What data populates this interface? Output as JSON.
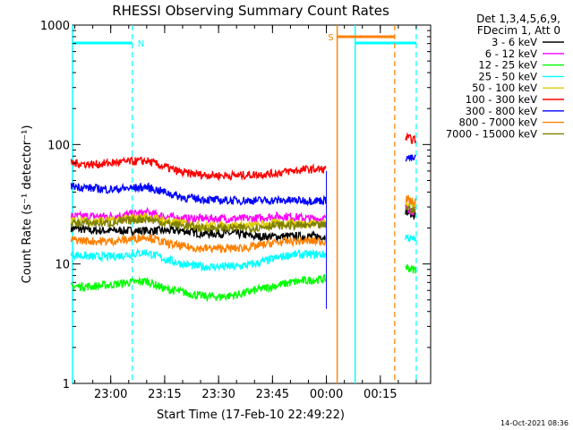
{
  "chart_data": {
    "type": "line",
    "title": "RHESSI Observing Summary Count Rates",
    "xlabel": "Start Time (17-Feb-10 22:49:22)",
    "ylabel": "Count Rate (s⁻¹ detector⁻¹)",
    "yscale": "log",
    "ylim": [
      1,
      1000
    ],
    "y_ticks": [
      1,
      10,
      100,
      1000
    ],
    "y_tick_labels": [
      "1",
      "10",
      "100",
      "1000"
    ],
    "xlim": [
      "22:49:22",
      "00:29:00"
    ],
    "x_ticks": [
      "23:00",
      "23:15",
      "23:30",
      "23:45",
      "00:00",
      "00:15"
    ],
    "legend_header": [
      "Det 1,3,4,5,6,9,",
      "FDecim 1, Att 0"
    ],
    "legend_position": "outside-right",
    "timestamp": "14-Oct-2021 08:36",
    "series": [
      {
        "name": "3 - 6 keV",
        "color": "#000000",
        "x": [
          "22:49",
          "22:55",
          "23:00",
          "23:05",
          "23:10",
          "23:15",
          "23:20",
          "23:25",
          "23:30",
          "23:35",
          "23:40",
          "23:45",
          "23:50",
          "23:55",
          "00:00",
          "00:22",
          "00:23",
          "00:24",
          "00:25"
        ],
        "y": [
          20,
          19,
          19,
          19,
          19,
          19,
          19,
          18,
          18,
          18,
          17,
          17,
          17,
          17,
          17,
          28,
          27,
          26,
          26
        ]
      },
      {
        "name": "6 - 12 keV",
        "color": "#ff00ff",
        "x": [
          "22:49",
          "22:55",
          "23:00",
          "23:05",
          "23:10",
          "23:15",
          "23:20",
          "23:25",
          "23:30",
          "23:35",
          "23:40",
          "23:45",
          "23:50",
          "23:55",
          "00:00",
          "00:22",
          "00:23",
          "00:24",
          "00:25"
        ],
        "y": [
          25,
          25,
          25,
          26,
          27,
          25,
          24,
          24,
          24,
          24,
          24,
          25,
          25,
          24,
          24,
          30,
          29,
          28,
          28
        ]
      },
      {
        "name": "12 - 25 keV",
        "color": "#00ff00",
        "x": [
          "22:49",
          "22:55",
          "23:00",
          "23:05",
          "23:10",
          "23:15",
          "23:20",
          "23:25",
          "23:30",
          "23:35",
          "23:40",
          "23:45",
          "23:50",
          "23:55",
          "00:00",
          "00:22",
          "00:23",
          "00:24",
          "00:25"
        ],
        "y": [
          6.5,
          6.5,
          6.7,
          7.0,
          7.2,
          6.2,
          5.8,
          5.4,
          5.3,
          5.5,
          6.0,
          6.5,
          7.0,
          7.3,
          7.5,
          9.5,
          9.2,
          9.0,
          9.0
        ]
      },
      {
        "name": "25 - 50 keV",
        "color": "#00ffff",
        "x": [
          "22:49",
          "22:55",
          "23:00",
          "23:05",
          "23:10",
          "23:15",
          "23:20",
          "23:25",
          "23:30",
          "23:35",
          "23:40",
          "23:45",
          "23:50",
          "23:55",
          "00:00",
          "00:22",
          "00:23",
          "00:24",
          "00:25"
        ],
        "y": [
          12,
          11.5,
          11.5,
          12,
          12.5,
          11,
          10,
          9.5,
          9.5,
          9.5,
          10,
          11,
          12,
          12,
          12,
          17,
          16.5,
          16,
          16
        ]
      },
      {
        "name": "50 - 100 keV",
        "color": "#ddcc00",
        "x": [
          "22:49",
          "22:55",
          "23:00",
          "23:05",
          "23:10",
          "23:15",
          "23:20",
          "23:25",
          "23:30",
          "23:35",
          "23:40",
          "23:45",
          "23:50",
          "23:55",
          "00:00",
          "00:22",
          "00:23",
          "00:24",
          "00:25"
        ],
        "y": [
          23,
          23,
          23,
          24,
          25,
          23,
          22,
          21,
          21,
          21,
          21,
          22,
          22,
          22,
          22,
          33,
          32,
          31,
          31
        ]
      },
      {
        "name": "100 - 300 keV",
        "color": "#ff0000",
        "x": [
          "22:49",
          "22:55",
          "23:00",
          "23:05",
          "23:10",
          "23:15",
          "23:20",
          "23:25",
          "23:30",
          "23:35",
          "23:40",
          "23:45",
          "23:50",
          "23:55",
          "00:00",
          "00:22",
          "00:23",
          "00:24",
          "00:25"
        ],
        "y": [
          70,
          68,
          70,
          72,
          73,
          65,
          58,
          56,
          55,
          55,
          56,
          57,
          60,
          62,
          62,
          115,
          112,
          110,
          110
        ]
      },
      {
        "name": "300 - 800 keV",
        "color": "#0000ff",
        "x": [
          "22:49",
          "22:55",
          "23:00",
          "23:05",
          "23:10",
          "23:15",
          "23:20",
          "23:25",
          "23:30",
          "23:35",
          "23:40",
          "23:45",
          "23:50",
          "23:55",
          "00:00",
          "00:22",
          "00:23",
          "00:24",
          "00:25"
        ],
        "y": [
          45,
          43,
          42,
          43,
          44,
          40,
          36,
          35,
          34,
          34,
          34,
          34,
          34,
          34,
          34,
          78,
          77,
          76,
          76
        ]
      },
      {
        "name": "800 - 7000 keV",
        "color": "#ff8000",
        "x": [
          "22:49",
          "22:55",
          "23:00",
          "23:05",
          "23:10",
          "23:15",
          "23:20",
          "23:25",
          "23:30",
          "23:35",
          "23:40",
          "23:45",
          "23:50",
          "23:55",
          "00:00",
          "00:22",
          "00:23",
          "00:24",
          "00:25"
        ],
        "y": [
          16,
          15.5,
          15.5,
          16,
          17,
          15,
          14,
          13.5,
          13.5,
          13.5,
          14,
          15,
          15.5,
          15.5,
          15.5,
          35,
          34,
          33,
          33
        ]
      },
      {
        "name": "7000 - 15000 keV",
        "color": "#808000",
        "x": [
          "22:49",
          "22:55",
          "23:00",
          "23:05",
          "23:10",
          "23:15",
          "23:20",
          "23:25",
          "23:30",
          "23:35",
          "23:40",
          "23:45",
          "23:50",
          "23:55",
          "00:00",
          "00:22",
          "00:23",
          "00:24",
          "00:25"
        ],
        "y": [
          22,
          22,
          22,
          23,
          24,
          22,
          21,
          20,
          20,
          20,
          20,
          21,
          21,
          21,
          21,
          30,
          29,
          28,
          28
        ]
      }
    ],
    "flags": [
      {
        "label": "N",
        "color": "#00ffff",
        "start": "22:49:22",
        "end": "23:06"
      },
      {
        "label": "",
        "color": "#00ffff",
        "start": "00:08",
        "end": "00:25"
      },
      {
        "label": "S",
        "color": "#ff8000",
        "start": "00:03",
        "end": "00:19"
      }
    ]
  }
}
